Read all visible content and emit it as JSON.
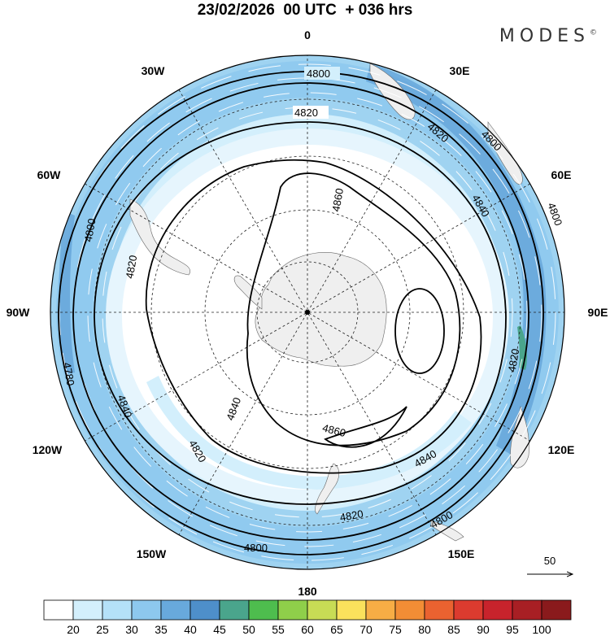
{
  "header": {
    "title": "23/02/2026  00 UTC  + 036 hrs",
    "brand": "MODES",
    "brand_mark": "©"
  },
  "map": {
    "projection": "polar-stereographic-south",
    "longitude_labels": [
      {
        "lon": 0,
        "text": "0"
      },
      {
        "lon": 30,
        "text": "30E"
      },
      {
        "lon": 60,
        "text": "60E"
      },
      {
        "lon": 90,
        "text": "90E"
      },
      {
        "lon": 120,
        "text": "120E"
      },
      {
        "lon": 150,
        "text": "150E"
      },
      {
        "lon": 180,
        "text": "180"
      },
      {
        "lon": -150,
        "text": "150W"
      },
      {
        "lon": -120,
        "text": "120W"
      },
      {
        "lon": -90,
        "text": "90W"
      },
      {
        "lon": -60,
        "text": "60W"
      },
      {
        "lon": -30,
        "text": "30W"
      }
    ],
    "contour_labels": [
      "4800",
      "4820",
      "4820",
      "4800",
      "4800",
      "4840",
      "4860",
      "4820",
      "4780",
      "4800",
      "4840",
      "4860",
      "4820",
      "4840",
      "4820",
      "4800",
      "4800",
      "4820",
      "4840"
    ],
    "vector_reference": {
      "value": "50"
    },
    "colors": {
      "land": "#efefef",
      "jet_light": "#c6e9fa",
      "jet_mid": "#9fd3f1",
      "jet_strong": "#6aaedc",
      "contour": "#000000"
    }
  },
  "colorbar": {
    "ticks": [
      "20",
      "25",
      "30",
      "35",
      "40",
      "45",
      "50",
      "55",
      "60",
      "65",
      "70",
      "75",
      "80",
      "85",
      "90",
      "95",
      "100"
    ],
    "colors": [
      "#ffffff",
      "#d3effc",
      "#b4e1f8",
      "#8dc8ee",
      "#68a9dc",
      "#4e8fca",
      "#4aa58c",
      "#4ebd4e",
      "#8fcf4a",
      "#c8dc55",
      "#fae15c",
      "#f7ad45",
      "#f28d35",
      "#ea6230",
      "#dc3b2f",
      "#c8232c",
      "#a81f24",
      "#8a1a1c"
    ]
  }
}
